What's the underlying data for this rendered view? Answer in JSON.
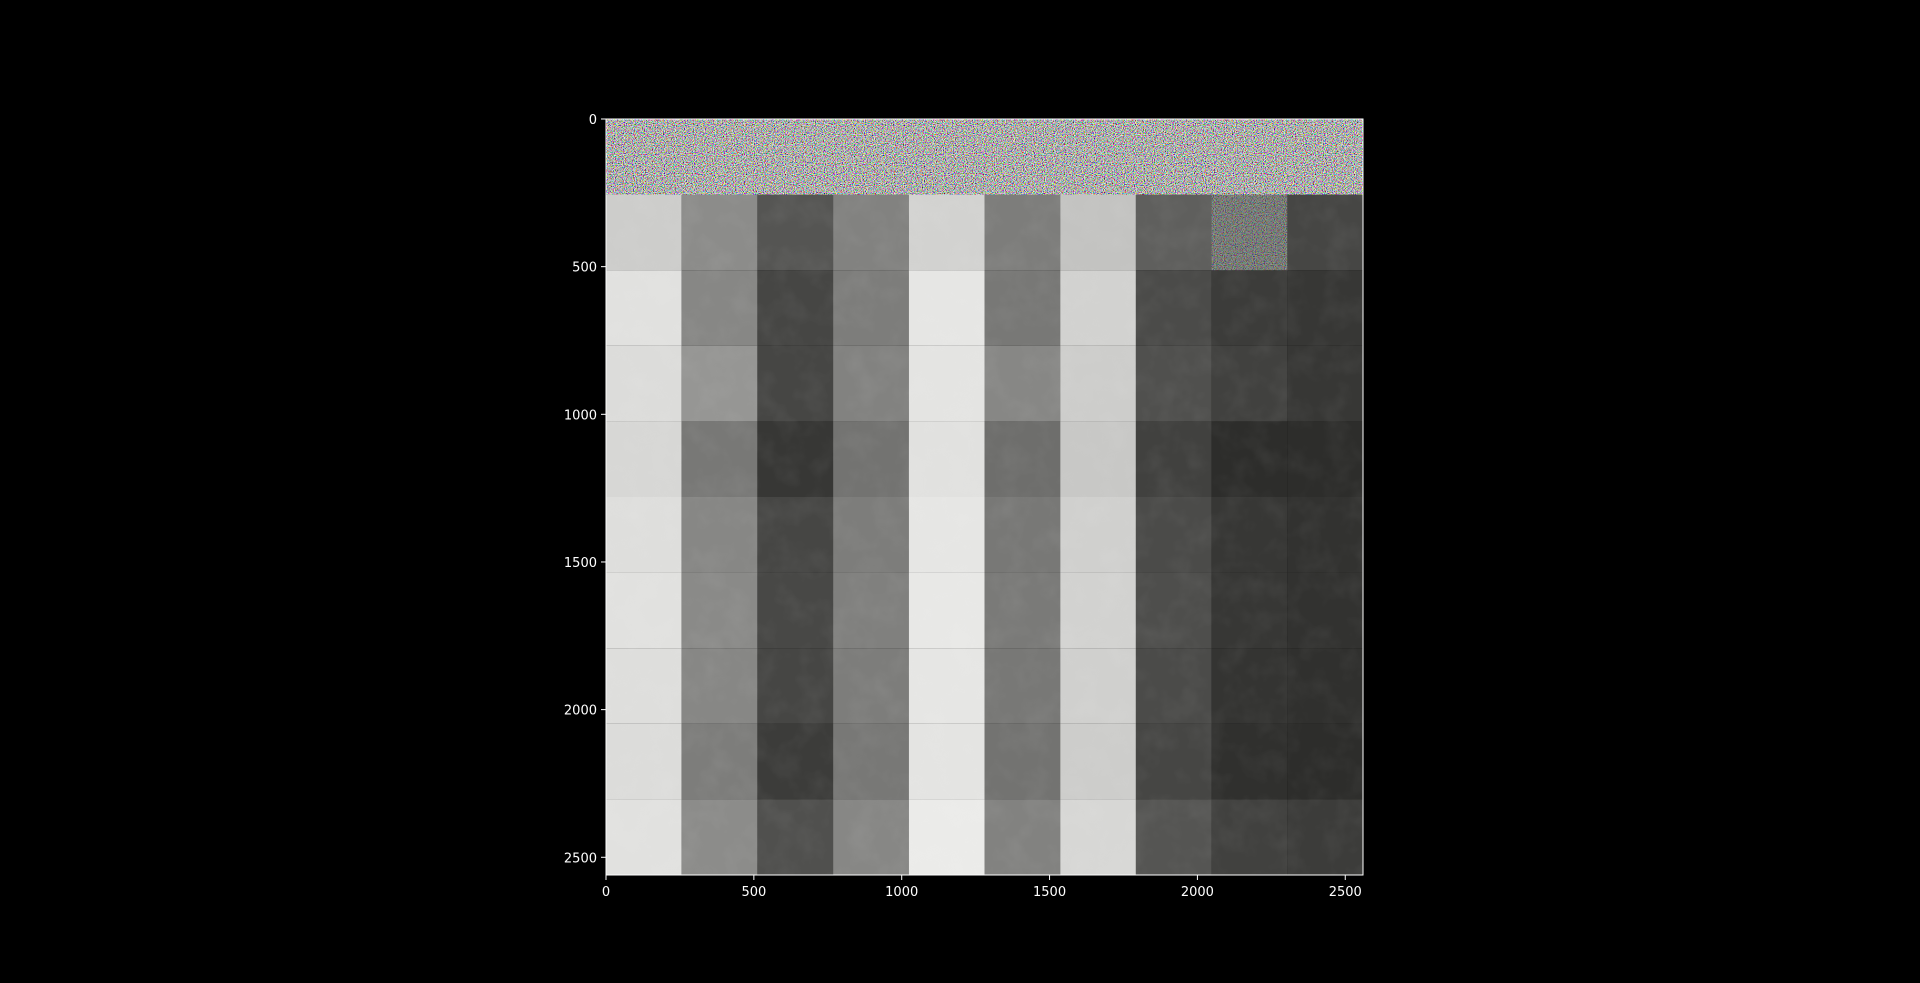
{
  "chart_data": {
    "type": "heatmap",
    "description_kind": "image-grid",
    "title": "",
    "xlabel": "",
    "ylabel": "",
    "xlim": [
      0,
      2560
    ],
    "ylim": [
      2560,
      0
    ],
    "x_ticks": [
      0,
      500,
      1000,
      1500,
      2000,
      2500
    ],
    "y_ticks": [
      0,
      500,
      1000,
      1500,
      2000,
      2500
    ],
    "x_tick_labels": [
      "0",
      "500",
      "1000",
      "1500",
      "2000",
      "2500"
    ],
    "y_tick_labels": [
      "0",
      "500",
      "1000",
      "1500",
      "2000",
      "2500"
    ],
    "grid": false,
    "tile_size": 256,
    "rows": 10,
    "cols": 10,
    "noise_tiles": [
      {
        "row": 0,
        "col": 0
      },
      {
        "row": 0,
        "col": 1
      },
      {
        "row": 0,
        "col": 2
      },
      {
        "row": 0,
        "col": 3
      },
      {
        "row": 0,
        "col": 4
      },
      {
        "row": 0,
        "col": 5
      },
      {
        "row": 0,
        "col": 6
      },
      {
        "row": 0,
        "col": 7
      },
      {
        "row": 0,
        "col": 8
      },
      {
        "row": 0,
        "col": 9
      },
      {
        "row": 1,
        "col": 8
      }
    ],
    "tile_brightness": [
      [
        0,
        0,
        0,
        0,
        0,
        0,
        0,
        0,
        0,
        0
      ],
      [
        205,
        140,
        85,
        130,
        210,
        125,
        195,
        95,
        110,
        70
      ],
      [
        225,
        135,
        70,
        125,
        230,
        120,
        210,
        75,
        60,
        55
      ],
      [
        220,
        150,
        70,
        130,
        228,
        135,
        205,
        80,
        65,
        55
      ],
      [
        215,
        120,
        55,
        115,
        225,
        110,
        200,
        65,
        45,
        45
      ],
      [
        222,
        135,
        70,
        125,
        230,
        120,
        208,
        75,
        55,
        50
      ],
      [
        225,
        138,
        72,
        128,
        232,
        122,
        210,
        78,
        55,
        50
      ],
      [
        222,
        135,
        70,
        125,
        230,
        120,
        208,
        75,
        52,
        48
      ],
      [
        220,
        125,
        60,
        120,
        228,
        115,
        205,
        70,
        48,
        45
      ],
      [
        225,
        140,
        80,
        135,
        235,
        130,
        215,
        85,
        65,
        60
      ]
    ],
    "colors": {
      "background": "#000000",
      "axis": "#ffffff",
      "tick_text": "#ffffff"
    }
  }
}
